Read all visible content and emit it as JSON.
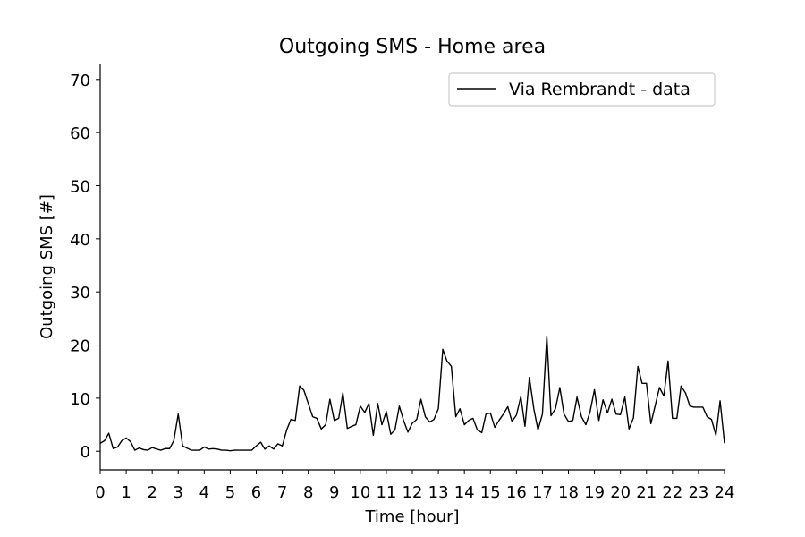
{
  "chart_data": {
    "type": "line",
    "title": "Outgoing SMS - Home area",
    "xlabel": "Time [hour]",
    "ylabel": "Outgoing SMS [#]",
    "xlim": [
      0,
      24
    ],
    "ylim": [
      -3.5,
      73
    ],
    "xticks": [
      0,
      1,
      2,
      3,
      4,
      5,
      6,
      7,
      8,
      9,
      10,
      11,
      12,
      13,
      14,
      15,
      16,
      17,
      18,
      19,
      20,
      21,
      22,
      23,
      24
    ],
    "yticks": [
      0,
      10,
      20,
      30,
      40,
      50,
      60,
      70
    ],
    "grid": false,
    "legend_position": "top-right",
    "colors": {
      "line": "#000000",
      "axis": "#000000",
      "legend_border": "#cccccc"
    },
    "series": [
      {
        "name": "Via Rembrandt - data",
        "x": [
          0.0,
          0.17,
          0.33,
          0.5,
          0.67,
          0.83,
          1.0,
          1.17,
          1.33,
          1.5,
          1.67,
          1.83,
          2.0,
          2.17,
          2.33,
          2.5,
          2.67,
          2.83,
          3.0,
          3.17,
          3.33,
          3.5,
          3.67,
          3.83,
          4.0,
          4.17,
          4.33,
          4.5,
          4.67,
          4.83,
          5.0,
          5.17,
          5.33,
          5.5,
          5.67,
          5.83,
          6.0,
          6.17,
          6.33,
          6.5,
          6.67,
          6.83,
          7.0,
          7.17,
          7.33,
          7.5,
          7.67,
          7.83,
          8.0,
          8.17,
          8.33,
          8.5,
          8.67,
          8.83,
          9.0,
          9.17,
          9.33,
          9.5,
          9.67,
          9.83,
          10.0,
          10.17,
          10.33,
          10.5,
          10.67,
          10.83,
          11.0,
          11.17,
          11.33,
          11.5,
          11.67,
          11.83,
          12.0,
          12.17,
          12.33,
          12.5,
          12.67,
          12.83,
          13.0,
          13.17,
          13.33,
          13.5,
          13.67,
          13.83,
          14.0,
          14.17,
          14.33,
          14.5,
          14.67,
          14.83,
          15.0,
          15.17,
          15.33,
          15.5,
          15.67,
          15.83,
          16.0,
          16.17,
          16.33,
          16.5,
          16.67,
          16.83,
          17.0,
          17.17,
          17.33,
          17.5,
          17.67,
          17.83,
          18.0,
          18.17,
          18.33,
          18.5,
          18.67,
          18.83,
          19.0,
          19.17,
          19.33,
          19.5,
          19.67,
          19.83,
          20.0,
          20.17,
          20.33,
          20.5,
          20.67,
          20.83,
          21.0,
          21.17,
          21.33,
          21.5,
          21.67,
          21.83,
          22.0,
          22.17,
          22.33,
          22.5,
          22.67,
          22.83,
          23.0,
          23.17,
          23.33,
          23.5,
          23.67,
          23.83,
          24.0
        ],
        "y": [
          1.5,
          2.0,
          3.4,
          0.5,
          0.8,
          2.0,
          2.5,
          1.8,
          0.2,
          0.6,
          0.3,
          0.2,
          0.7,
          0.4,
          0.2,
          0.5,
          0.5,
          2.0,
          7.0,
          1.0,
          0.6,
          0.2,
          0.2,
          0.2,
          0.8,
          0.4,
          0.5,
          0.4,
          0.2,
          0.2,
          0.1,
          0.2,
          0.2,
          0.2,
          0.2,
          0.2,
          1.0,
          1.7,
          0.4,
          1.0,
          0.4,
          1.4,
          1.0,
          4.0,
          6.0,
          5.8,
          12.3,
          11.5,
          9.0,
          6.5,
          6.2,
          4.2,
          5.0,
          9.8,
          5.8,
          6.2,
          11.0,
          4.3,
          4.7,
          5.0,
          8.5,
          7.3,
          9.0,
          3.0,
          9.0,
          5.0,
          7.5,
          3.2,
          4.0,
          8.5,
          5.7,
          3.6,
          5.3,
          6.0,
          9.8,
          6.5,
          5.5,
          6.0,
          8.0,
          19.2,
          17.0,
          16.0,
          6.5,
          8.0,
          5.0,
          5.8,
          6.2,
          4.0,
          3.5,
          7.0,
          7.2,
          4.5,
          5.8,
          7.0,
          8.4,
          5.6,
          6.8,
          10.3,
          4.7,
          13.9,
          8.0,
          4.0,
          7.0,
          21.7,
          6.7,
          8.0,
          12.0,
          7.0,
          5.6,
          5.8,
          10.2,
          6.5,
          5.0,
          7.4,
          11.6,
          5.8,
          9.7,
          7.2,
          9.8,
          7.0,
          6.9,
          10.2,
          4.2,
          6.3,
          16.0,
          12.8,
          12.8,
          5.2,
          8.5,
          12.0,
          10.4,
          17.0,
          6.2,
          6.2,
          12.3,
          11.0,
          8.5,
          8.3,
          8.3,
          8.3,
          6.5,
          6.0,
          3.0,
          9.5,
          1.5
        ]
      }
    ]
  }
}
